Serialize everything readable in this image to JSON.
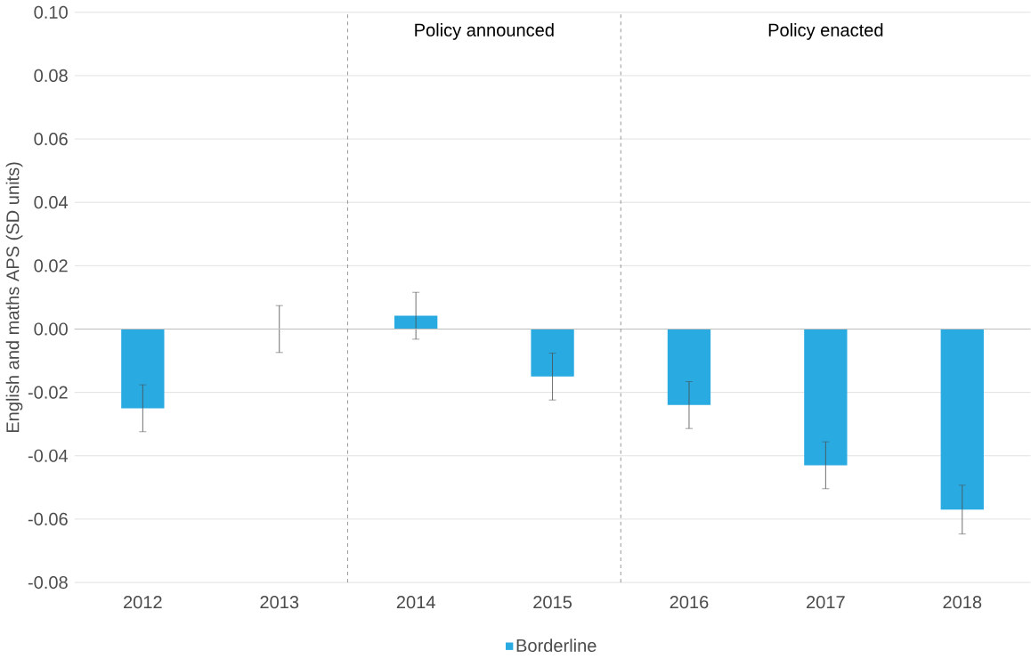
{
  "chart_data": {
    "type": "bar",
    "ylabel": "English and maths APS (SD units)",
    "categories": [
      "2012",
      "2013",
      "2014",
      "2015",
      "2016",
      "2017",
      "2018"
    ],
    "series": [
      {
        "name": "Borderline",
        "color": "#29abe2",
        "values": [
          -0.025,
          0.0,
          0.0042,
          -0.015,
          -0.024,
          -0.043,
          -0.057
        ],
        "errors": [
          0.0074,
          0.0074,
          0.0074,
          0.0074,
          0.0074,
          0.0074,
          0.0077
        ]
      }
    ],
    "ylim": [
      -0.08,
      0.1
    ],
    "yticks": [
      {
        "value": -0.08,
        "label": "-0.08"
      },
      {
        "value": -0.06,
        "label": "-0.06"
      },
      {
        "value": -0.04,
        "label": "-0.04"
      },
      {
        "value": -0.02,
        "label": "-0.02"
      },
      {
        "value": 0,
        "label": "0.00"
      },
      {
        "value": 0.02,
        "label": "0.02"
      },
      {
        "value": 0.04,
        "label": "0.04"
      },
      {
        "value": 0.06,
        "label": "0.06"
      },
      {
        "value": 0.08,
        "label": "0.08"
      },
      {
        "value": 0.1,
        "label": "0.10"
      }
    ],
    "annotations": [
      "Policy announced",
      "Policy enacted"
    ],
    "grid": "y",
    "legend": "bottom"
  }
}
